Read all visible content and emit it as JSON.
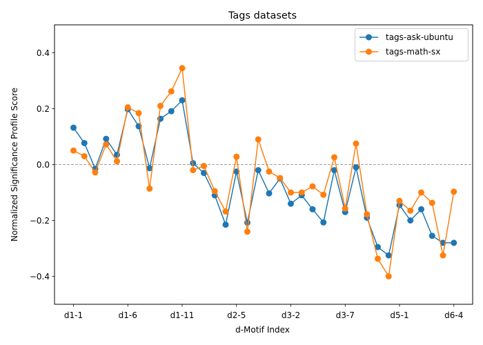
{
  "chart_data": {
    "type": "line",
    "title": "Tags datasets",
    "xlabel": "d-Motif Index",
    "ylabel": "Normalized Significance Profile Score",
    "ylim": [
      -0.5,
      0.5
    ],
    "yticks": [
      -0.4,
      -0.2,
      0.0,
      0.2,
      0.4
    ],
    "ytick_labels": [
      "−0.4",
      "−0.2",
      "0.0",
      "0.2",
      "0.4"
    ],
    "xtick_labels": [
      "d1-1",
      "d1-6",
      "d1-11",
      "d2-5",
      "d3-2",
      "d3-7",
      "d5-1",
      "d6-4"
    ],
    "xtick_indices": [
      0,
      5,
      10,
      15,
      20,
      25,
      30,
      35
    ],
    "num_points": 36,
    "zero_line": true,
    "grid": false,
    "legend_position": "upper right",
    "series": [
      {
        "name": "tags-ask-ubuntu",
        "color": "#1f77b4",
        "values": [
          0.132,
          0.077,
          -0.015,
          0.092,
          0.035,
          0.198,
          0.137,
          -0.013,
          0.164,
          0.191,
          0.23,
          0.005,
          -0.03,
          -0.11,
          -0.215,
          -0.025,
          -0.208,
          -0.02,
          -0.103,
          -0.05,
          -0.14,
          -0.11,
          -0.16,
          -0.207,
          -0.02,
          -0.17,
          -0.01,
          -0.19,
          -0.295,
          -0.325,
          -0.145,
          -0.2,
          -0.16,
          -0.255,
          -0.28,
          -0.28
        ]
      },
      {
        "name": "tags-math-sx",
        "color": "#ff7f0e",
        "values": [
          0.05,
          0.03,
          -0.028,
          0.072,
          0.012,
          0.205,
          0.184,
          -0.086,
          0.21,
          0.262,
          0.345,
          -0.02,
          -0.005,
          -0.095,
          -0.168,
          0.028,
          -0.24,
          0.09,
          -0.025,
          -0.048,
          -0.1,
          -0.1,
          -0.078,
          -0.108,
          0.026,
          -0.157,
          0.075,
          -0.178,
          -0.337,
          -0.4,
          -0.13,
          -0.165,
          -0.1,
          -0.137,
          -0.325,
          -0.097
        ]
      }
    ]
  }
}
